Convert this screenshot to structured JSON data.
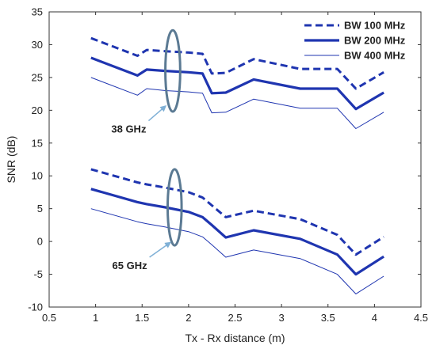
{
  "chart_data": {
    "type": "line",
    "title": "",
    "xlabel": "Tx - Rx distance (m)",
    "ylabel": "SNR (dB)",
    "xlim": [
      0.5,
      4.5
    ],
    "ylim": [
      -10,
      35
    ],
    "xticks": [
      0.5,
      1,
      1.5,
      2,
      2.5,
      3,
      3.5,
      4,
      4.5
    ],
    "xtick_labels": [
      "0.5",
      "1",
      "1.5",
      "2",
      "2.5",
      "3",
      "3.5",
      "4",
      "4.5"
    ],
    "yticks": [
      -10,
      -5,
      0,
      5,
      10,
      15,
      20,
      25,
      30,
      35
    ],
    "ytick_labels": [
      "-10",
      "-5",
      "0",
      "5",
      "10",
      "15",
      "20",
      "25",
      "30",
      "35"
    ],
    "grid": false,
    "legend_position": "top-right",
    "series_color": "#1f35b0",
    "legend": [
      {
        "label": "BW 100 MHz",
        "style": "dashed"
      },
      {
        "label": "BW 200 MHz",
        "style": "thick"
      },
      {
        "label": "BW 400 MHz",
        "style": "thin"
      }
    ],
    "x": [
      0.95,
      1.45,
      1.55,
      1.75,
      2.0,
      2.15,
      2.25,
      2.4,
      2.7,
      3.2,
      3.6,
      3.8,
      4.1
    ],
    "series": [
      {
        "group": "38 GHz",
        "bandwidth": "100 MHz",
        "style": "dashed",
        "values": [
          31,
          28.3,
          29.2,
          29,
          28.8,
          28.6,
          25.6,
          25.7,
          27.8,
          26.3,
          26.3,
          23.3,
          25.8
        ]
      },
      {
        "group": "38 GHz",
        "bandwidth": "200 MHz",
        "style": "thick",
        "values": [
          28,
          25.3,
          26.2,
          26,
          25.8,
          25.6,
          22.6,
          22.7,
          24.7,
          23.3,
          23.3,
          20.2,
          22.7
        ]
      },
      {
        "group": "38 GHz",
        "bandwidth": "400 MHz",
        "style": "thin",
        "values": [
          25,
          22.3,
          23.3,
          23,
          22.8,
          22.6,
          19.6,
          19.7,
          21.7,
          20.3,
          20.3,
          17.2,
          19.7
        ]
      },
      {
        "group": "65 GHz",
        "bandwidth": "100 MHz",
        "style": "dashed",
        "values": [
          11,
          9,
          8.7,
          8.2,
          7.5,
          6.7,
          5.5,
          3.7,
          4.7,
          3.4,
          1,
          -2,
          0.7
        ]
      },
      {
        "group": "65 GHz",
        "bandwidth": "200 MHz",
        "style": "thick",
        "values": [
          8,
          6,
          5.7,
          5.2,
          4.5,
          3.7,
          2.5,
          0.6,
          1.7,
          0.4,
          -2,
          -5,
          -2.3
        ]
      },
      {
        "group": "65 GHz",
        "bandwidth": "400 MHz",
        "style": "thin",
        "values": [
          5,
          3,
          2.7,
          2.2,
          1.5,
          0.7,
          -0.5,
          -2.4,
          -1.3,
          -2.6,
          -5,
          -8,
          -5.3
        ]
      }
    ],
    "annotations": [
      {
        "text": "38 GHz",
        "ellipse_center": [
          1.83,
          26
        ],
        "ellipse_half_width": 0.08,
        "ellipse_half_height": 6.2,
        "arrow_from": [
          1.57,
          18.4
        ],
        "arrow_to": [
          1.75,
          20.6
        ]
      },
      {
        "text": "65 GHz",
        "ellipse_center": [
          1.85,
          5.2
        ],
        "ellipse_half_width": 0.075,
        "ellipse_half_height": 5.8,
        "arrow_from": [
          1.58,
          -2.4
        ],
        "arrow_to": [
          1.8,
          -0.2
        ]
      }
    ]
  }
}
